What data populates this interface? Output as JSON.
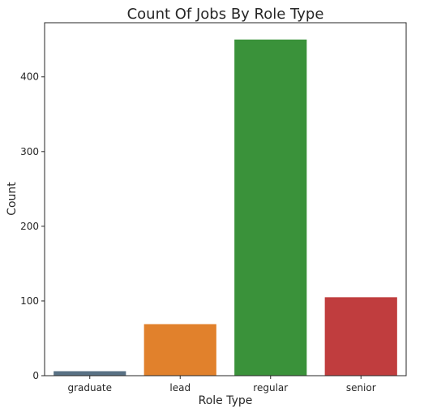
{
  "chart_data": {
    "type": "bar",
    "title": "Count Of Jobs By Role Type",
    "xlabel": "Role Type",
    "ylabel": "Count",
    "categories": [
      "graduate",
      "lead",
      "regular",
      "senior"
    ],
    "values": [
      6,
      69,
      450,
      105
    ],
    "colors": [
      "#597184",
      "#e1812c",
      "#3a923a",
      "#c03d3e"
    ],
    "yticks": [
      0,
      100,
      200,
      300,
      400
    ],
    "ylim": [
      0,
      472.5
    ],
    "grid": false,
    "legend": "none"
  }
}
